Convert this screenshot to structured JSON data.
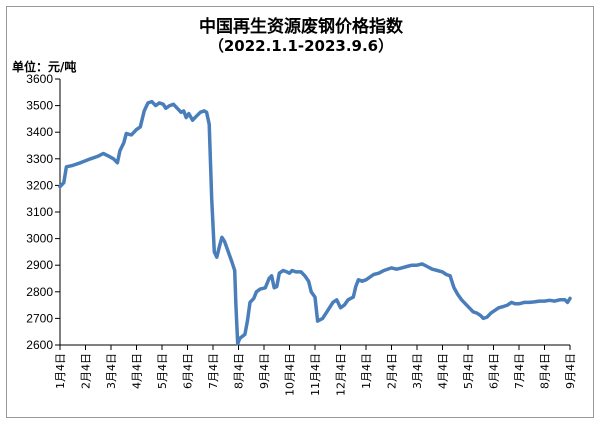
{
  "chart_data": {
    "type": "line",
    "title": "中国再生资源废钢价格指数",
    "subtitle": "（2022.1.1-2023.9.6）",
    "ylabel": "单位：元/吨",
    "xlabel": "",
    "ylim": [
      2600,
      3600
    ],
    "yticks": [
      2600,
      2700,
      2800,
      2900,
      3000,
      3100,
      3200,
      3300,
      3400,
      3500,
      3600
    ],
    "categories": [
      "1月4日",
      "2月4日",
      "3月4日",
      "4月4日",
      "5月4日",
      "6月4日",
      "7月4日",
      "8月4日",
      "9月4日",
      "10月4日",
      "11月4日",
      "12月4日",
      "1月4日",
      "2月4日",
      "3月4日",
      "4月4日",
      "5月4日",
      "6月4日",
      "7月4日",
      "8月4日",
      "9月4日"
    ],
    "grid": false,
    "legend": "none",
    "line_color": "#4a7ebb",
    "series": [
      {
        "values": [
          [
            0,
            3195
          ],
          [
            0.15,
            3210
          ],
          [
            0.25,
            3270
          ],
          [
            0.5,
            3275
          ],
          [
            0.8,
            3285
          ],
          [
            1.2,
            3300
          ],
          [
            1.5,
            3310
          ],
          [
            1.7,
            3320
          ],
          [
            1.9,
            3310
          ],
          [
            2.1,
            3300
          ],
          [
            2.25,
            3285
          ],
          [
            2.35,
            3330
          ],
          [
            2.5,
            3360
          ],
          [
            2.6,
            3395
          ],
          [
            2.8,
            3390
          ],
          [
            3.0,
            3410
          ],
          [
            3.15,
            3420
          ],
          [
            3.3,
            3480
          ],
          [
            3.45,
            3510
          ],
          [
            3.6,
            3515
          ],
          [
            3.75,
            3500
          ],
          [
            3.9,
            3510
          ],
          [
            4.05,
            3505
          ],
          [
            4.15,
            3490
          ],
          [
            4.3,
            3500
          ],
          [
            4.45,
            3505
          ],
          [
            4.6,
            3490
          ],
          [
            4.75,
            3475
          ],
          [
            4.85,
            3480
          ],
          [
            4.95,
            3455
          ],
          [
            5.05,
            3470
          ],
          [
            5.2,
            3445
          ],
          [
            5.35,
            3460
          ],
          [
            5.5,
            3475
          ],
          [
            5.65,
            3480
          ],
          [
            5.75,
            3475
          ],
          [
            5.85,
            3430
          ],
          [
            5.95,
            3150
          ],
          [
            6.05,
            2950
          ],
          [
            6.15,
            2930
          ],
          [
            6.25,
            2970
          ],
          [
            6.35,
            3005
          ],
          [
            6.45,
            2990
          ],
          [
            6.6,
            2950
          ],
          [
            6.75,
            2910
          ],
          [
            6.85,
            2880
          ],
          [
            6.9,
            2750
          ],
          [
            6.97,
            2605
          ],
          [
            7.05,
            2625
          ],
          [
            7.25,
            2640
          ],
          [
            7.35,
            2690
          ],
          [
            7.45,
            2760
          ],
          [
            7.6,
            2775
          ],
          [
            7.7,
            2800
          ],
          [
            7.85,
            2810
          ],
          [
            8.05,
            2815
          ],
          [
            8.2,
            2850
          ],
          [
            8.3,
            2860
          ],
          [
            8.4,
            2815
          ],
          [
            8.5,
            2820
          ],
          [
            8.6,
            2870
          ],
          [
            8.75,
            2880
          ],
          [
            8.9,
            2875
          ],
          [
            9.0,
            2870
          ],
          [
            9.1,
            2880
          ],
          [
            9.25,
            2875
          ],
          [
            9.45,
            2875
          ],
          [
            9.6,
            2860
          ],
          [
            9.75,
            2840
          ],
          [
            9.85,
            2800
          ],
          [
            10.0,
            2780
          ],
          [
            10.1,
            2690
          ],
          [
            10.3,
            2700
          ],
          [
            10.5,
            2730
          ],
          [
            10.7,
            2760
          ],
          [
            10.85,
            2770
          ],
          [
            11.0,
            2740
          ],
          [
            11.15,
            2750
          ],
          [
            11.3,
            2770
          ],
          [
            11.5,
            2780
          ],
          [
            11.6,
            2820
          ],
          [
            11.7,
            2845
          ],
          [
            11.85,
            2840
          ],
          [
            12.0,
            2845
          ],
          [
            12.15,
            2855
          ],
          [
            12.3,
            2865
          ],
          [
            12.5,
            2870
          ],
          [
            12.7,
            2880
          ],
          [
            13.0,
            2890
          ],
          [
            13.2,
            2885
          ],
          [
            13.4,
            2890
          ],
          [
            13.6,
            2895
          ],
          [
            13.8,
            2900
          ],
          [
            14.0,
            2900
          ],
          [
            14.2,
            2905
          ],
          [
            14.4,
            2895
          ],
          [
            14.6,
            2885
          ],
          [
            14.8,
            2880
          ],
          [
            15.0,
            2875
          ],
          [
            15.15,
            2865
          ],
          [
            15.3,
            2860
          ],
          [
            15.45,
            2815
          ],
          [
            15.6,
            2790
          ],
          [
            15.75,
            2770
          ],
          [
            15.9,
            2755
          ],
          [
            16.05,
            2740
          ],
          [
            16.2,
            2725
          ],
          [
            16.35,
            2720
          ],
          [
            16.5,
            2710
          ],
          [
            16.6,
            2700
          ],
          [
            16.75,
            2705
          ],
          [
            16.9,
            2720
          ],
          [
            17.05,
            2730
          ],
          [
            17.2,
            2740
          ],
          [
            17.4,
            2745
          ],
          [
            17.55,
            2750
          ],
          [
            17.7,
            2760
          ],
          [
            17.85,
            2755
          ],
          [
            18.0,
            2755
          ],
          [
            18.2,
            2760
          ],
          [
            18.4,
            2760
          ],
          [
            18.6,
            2762
          ],
          [
            18.8,
            2765
          ],
          [
            19.0,
            2765
          ],
          [
            19.2,
            2768
          ],
          [
            19.4,
            2765
          ],
          [
            19.6,
            2770
          ],
          [
            19.8,
            2770
          ],
          [
            19.9,
            2760
          ],
          [
            20.0,
            2775
          ]
        ]
      }
    ]
  }
}
